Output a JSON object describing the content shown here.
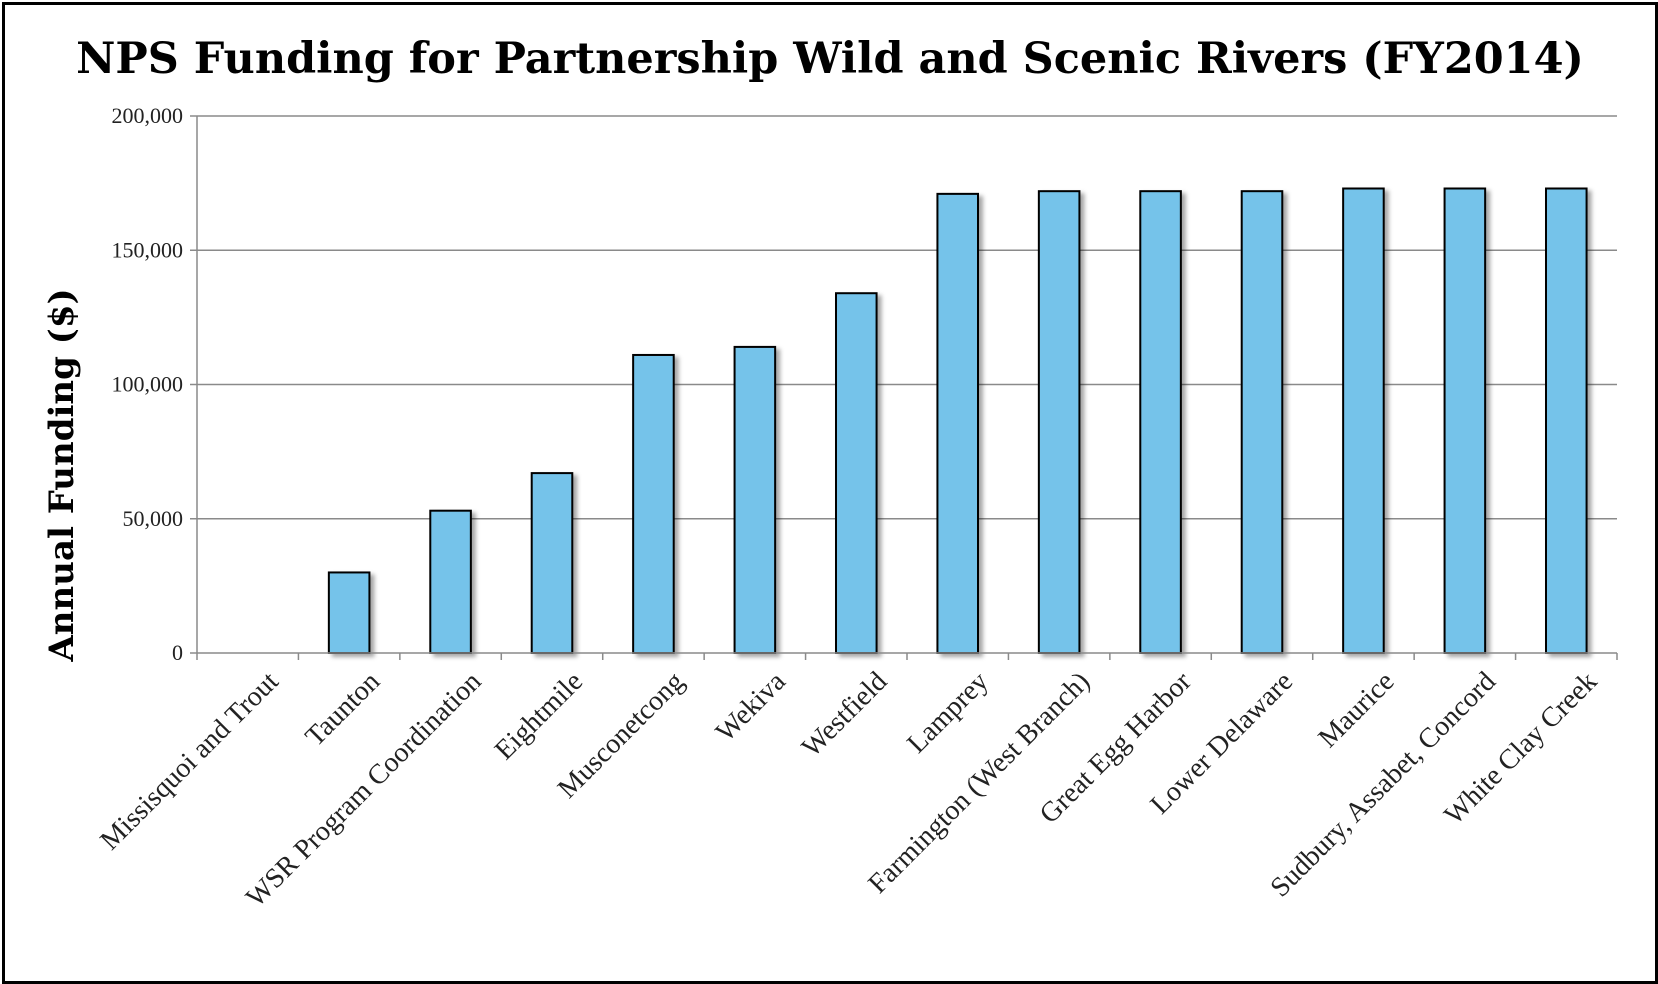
{
  "chart_data": {
    "type": "bar",
    "title": "NPS Funding for Partnership Wild and Scenic Rivers (FY2014)",
    "xlabel": "",
    "ylabel": "Annual Funding ($)",
    "ylim": [
      0,
      200000
    ],
    "yticks": [
      0,
      50000,
      100000,
      150000,
      200000
    ],
    "ytick_labels": [
      "0",
      "50,000",
      "100,000",
      "150,000",
      "200,000"
    ],
    "grid": "horizontal",
    "bar_color": "#74c3ea",
    "categories": [
      "Missisquoi and Trout",
      "Taunton",
      "WSR Program Coordination",
      "Eightmile",
      "Musconetcong",
      "Wekiva",
      "Westfield",
      "Lamprey",
      "Farmington (West Branch)",
      "Great Egg Harbor",
      "Lower Delaware",
      "Maurice",
      "Sudbury, Assabet, Concord",
      "White Clay Creek"
    ],
    "values": [
      0,
      30000,
      53000,
      67000,
      111000,
      114000,
      134000,
      171000,
      172000,
      172000,
      172000,
      173000,
      173000,
      173000
    ]
  }
}
